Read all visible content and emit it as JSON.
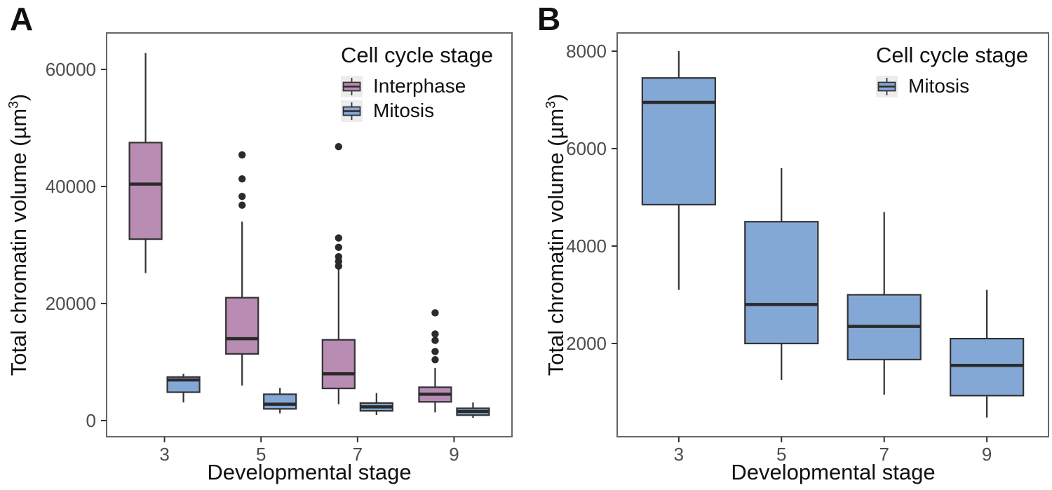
{
  "colors": {
    "interphase_fill": "#B98CB4",
    "mitosis_fill": "#84A8D6",
    "box_stroke": "#333333",
    "median_stroke": "#2B2B2B",
    "whisker_stroke": "#333333",
    "outlier_fill": "#2B2B2B",
    "panel_border": "#666666",
    "tick_mark": "#333333",
    "tick_text": "#4D4D4D",
    "legend_key_bg": "#ECECEC",
    "text": "#111111"
  },
  "ui": {
    "panels": [
      {
        "label": "A",
        "y_title_prefix": "Total chromatin volume (µm",
        "y_title_sup": "3",
        "y_title_suffix": ")",
        "x_title": "Developmental stage",
        "legend_title": "Cell cycle stage",
        "legend_items": [
          {
            "label": "Interphase"
          },
          {
            "label": "Mitosis"
          }
        ]
      },
      {
        "label": "B",
        "y_title_prefix": "Total chromatin volume (µm",
        "y_title_sup": "3",
        "y_title_suffix": ")",
        "x_title": "Developmental stage",
        "legend_title": "Cell cycle stage",
        "legend_items": [
          {
            "label": "Mitosis"
          }
        ]
      }
    ]
  },
  "chart_data": [
    {
      "type": "boxplot",
      "panel": "A",
      "xlabel": "Developmental stage",
      "ylabel": "Total chromatin volume (µm³)",
      "categories": [
        "3",
        "5",
        "7",
        "9"
      ],
      "yticks": [
        0,
        20000,
        40000,
        60000
      ],
      "ytick_labels": [
        "0",
        "20000",
        "40000",
        "60000"
      ],
      "ylim": [
        -2800,
        66300
      ],
      "grid": false,
      "legend_title": "Cell cycle stage",
      "legend_position": "inside-top-right",
      "series": [
        {
          "name": "Interphase",
          "color": "#B98CB4",
          "boxes": [
            {
              "stage": "3",
              "min": 25200,
              "q1": 31000,
              "median": 40400,
              "q3": 47500,
              "max": 62800,
              "outliers": []
            },
            {
              "stage": "5",
              "min": 6000,
              "q1": 11400,
              "median": 14000,
              "q3": 21000,
              "max": 34000,
              "outliers": [
                36800,
                38300,
                41300,
                45400
              ]
            },
            {
              "stage": "7",
              "min": 2800,
              "q1": 5500,
              "median": 8000,
              "q3": 13800,
              "max": 25900,
              "outliers": [
                26400,
                27200,
                28000,
                29600,
                31200,
                46800
              ]
            },
            {
              "stage": "9",
              "min": 1400,
              "q1": 3200,
              "median": 4500,
              "q3": 5700,
              "max": 9000,
              "outliers": [
                10400,
                11800,
                13700,
                14800,
                18400
              ]
            }
          ]
        },
        {
          "name": "Mitosis",
          "color": "#84A8D6",
          "boxes": [
            {
              "stage": "3",
              "min": 3100,
              "q1": 4850,
              "median": 6950,
              "q3": 7450,
              "max": 8000,
              "outliers": []
            },
            {
              "stage": "5",
              "min": 1250,
              "q1": 2000,
              "median": 2800,
              "q3": 4500,
              "max": 5600,
              "outliers": []
            },
            {
              "stage": "7",
              "min": 950,
              "q1": 1670,
              "median": 2350,
              "q3": 3000,
              "max": 4700,
              "outliers": []
            },
            {
              "stage": "9",
              "min": 480,
              "q1": 930,
              "median": 1550,
              "q3": 2100,
              "max": 3100,
              "outliers": []
            }
          ]
        }
      ]
    },
    {
      "type": "boxplot",
      "panel": "B",
      "xlabel": "Developmental stage",
      "ylabel": "Total chromatin volume (µm³)",
      "categories": [
        "3",
        "5",
        "7",
        "9"
      ],
      "yticks": [
        2000,
        4000,
        6000,
        8000
      ],
      "ytick_labels": [
        "2000",
        "4000",
        "6000",
        "8000"
      ],
      "ylim": [
        100,
        8400
      ],
      "grid": false,
      "legend_title": "Cell cycle stage",
      "legend_position": "inside-top-right",
      "series": [
        {
          "name": "Mitosis",
          "color": "#84A8D6",
          "boxes": [
            {
              "stage": "3",
              "min": 3100,
              "q1": 4850,
              "median": 6950,
              "q3": 7450,
              "max": 8000,
              "outliers": []
            },
            {
              "stage": "5",
              "min": 1250,
              "q1": 2000,
              "median": 2800,
              "q3": 4500,
              "max": 5600,
              "outliers": []
            },
            {
              "stage": "7",
              "min": 950,
              "q1": 1670,
              "median": 2350,
              "q3": 3000,
              "max": 4700,
              "outliers": []
            },
            {
              "stage": "9",
              "min": 480,
              "q1": 930,
              "median": 1550,
              "q3": 2100,
              "max": 3100,
              "outliers": []
            }
          ]
        }
      ]
    }
  ]
}
